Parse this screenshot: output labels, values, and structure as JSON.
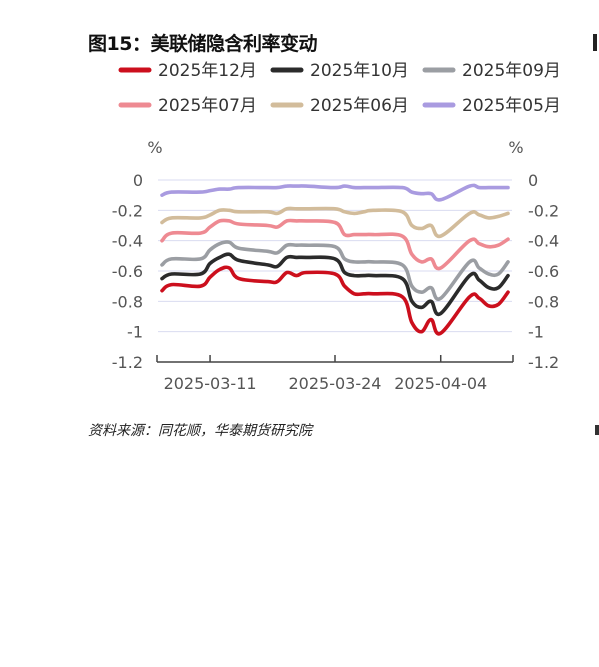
{
  "title": "图15：美联储隐含利率变动",
  "source": "资料来源：同花顺，华泰期货研究院",
  "chart_data": {
    "type": "line",
    "y_unit_left": "%",
    "y_unit_right": "%",
    "ylim": [
      -1.2,
      0
    ],
    "yticks": [
      0,
      -0.2,
      -0.4,
      -0.6,
      -0.8,
      -1,
      -1.2
    ],
    "ytick_labels": [
      "0",
      "-0.2",
      "-0.4",
      "-0.6",
      "-0.8",
      "-1",
      "-1.2"
    ],
    "x_dates": [
      "2025-03-06",
      "2025-03-07",
      "2025-03-10",
      "2025-03-11",
      "2025-03-12",
      "2025-03-13",
      "2025-03-14",
      "2025-03-17",
      "2025-03-18",
      "2025-03-19",
      "2025-03-20",
      "2025-03-21",
      "2025-03-24",
      "2025-03-25",
      "2025-03-26",
      "2025-03-27",
      "2025-03-28",
      "2025-03-31",
      "2025-04-01",
      "2025-04-02",
      "2025-04-03",
      "2025-04-04",
      "2025-04-07",
      "2025-04-08",
      "2025-04-09",
      "2025-04-10",
      "2025-04-11"
    ],
    "xtick_labels": [
      "2025-03-11",
      "2025-03-24",
      "2025-04-04"
    ],
    "grid": true,
    "legend_position": "top",
    "series": [
      {
        "name": "2025年12月",
        "color": "#cc0f1d",
        "values": [
          -0.73,
          -0.69,
          -0.7,
          -0.64,
          -0.59,
          -0.58,
          -0.65,
          -0.67,
          -0.67,
          -0.61,
          -0.63,
          -0.61,
          -0.62,
          -0.7,
          -0.75,
          -0.75,
          -0.75,
          -0.77,
          -0.94,
          -1.0,
          -0.92,
          -1.01,
          -0.77,
          -0.78,
          -0.83,
          -0.82,
          -0.74
        ]
      },
      {
        "name": "2025年10月",
        "color": "#2b2b2b",
        "values": [
          -0.65,
          -0.62,
          -0.62,
          -0.55,
          -0.51,
          -0.49,
          -0.53,
          -0.56,
          -0.57,
          -0.51,
          -0.51,
          -0.51,
          -0.52,
          -0.61,
          -0.63,
          -0.63,
          -0.63,
          -0.65,
          -0.8,
          -0.84,
          -0.8,
          -0.88,
          -0.63,
          -0.66,
          -0.71,
          -0.71,
          -0.63
        ]
      },
      {
        "name": "2025年09月",
        "color": "#9b9ea3",
        "values": [
          -0.56,
          -0.52,
          -0.52,
          -0.46,
          -0.42,
          -0.41,
          -0.45,
          -0.47,
          -0.48,
          -0.43,
          -0.43,
          -0.43,
          -0.44,
          -0.52,
          -0.54,
          -0.54,
          -0.54,
          -0.56,
          -0.7,
          -0.74,
          -0.71,
          -0.78,
          -0.54,
          -0.58,
          -0.62,
          -0.62,
          -0.54
        ]
      },
      {
        "name": "2025年07月",
        "color": "#ee8a92",
        "values": [
          -0.4,
          -0.35,
          -0.35,
          -0.31,
          -0.27,
          -0.27,
          -0.29,
          -0.3,
          -0.31,
          -0.27,
          -0.27,
          -0.27,
          -0.28,
          -0.36,
          -0.36,
          -0.36,
          -0.36,
          -0.37,
          -0.49,
          -0.54,
          -0.52,
          -0.58,
          -0.4,
          -0.42,
          -0.44,
          -0.43,
          -0.39
        ]
      },
      {
        "name": "2025年06月",
        "color": "#d2bc9b",
        "values": [
          -0.28,
          -0.25,
          -0.25,
          -0.23,
          -0.2,
          -0.2,
          -0.21,
          -0.21,
          -0.22,
          -0.19,
          -0.19,
          -0.19,
          -0.19,
          -0.21,
          -0.22,
          -0.21,
          -0.2,
          -0.21,
          -0.3,
          -0.32,
          -0.3,
          -0.37,
          -0.22,
          -0.23,
          -0.25,
          -0.24,
          -0.22
        ]
      },
      {
        "name": "2025年05月",
        "color": "#a99be0",
        "values": [
          -0.1,
          -0.08,
          -0.08,
          -0.07,
          -0.06,
          -0.06,
          -0.05,
          -0.05,
          -0.05,
          -0.04,
          -0.04,
          -0.04,
          -0.05,
          -0.04,
          -0.05,
          -0.05,
          -0.05,
          -0.05,
          -0.08,
          -0.09,
          -0.09,
          -0.13,
          -0.04,
          -0.05,
          -0.05,
          -0.05,
          -0.05
        ]
      }
    ]
  }
}
